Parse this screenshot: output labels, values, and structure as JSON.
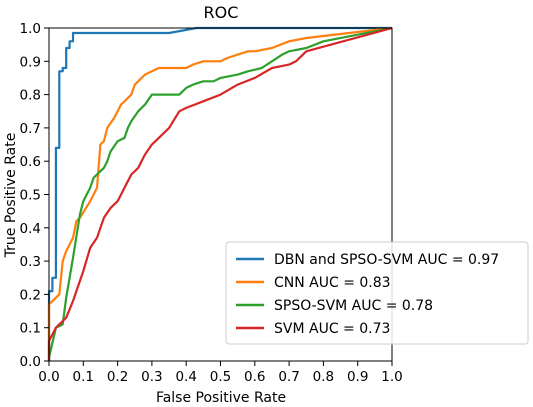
{
  "chart_data": {
    "type": "line",
    "title": "ROC",
    "xlabel": "False Positive Rate",
    "ylabel": "True Positive Rate",
    "xlim": [
      0,
      1
    ],
    "ylim": [
      0,
      1
    ],
    "xticks": [
      "0.0",
      "0.1",
      "0.2",
      "0.3",
      "0.4",
      "0.5",
      "0.6",
      "0.7",
      "0.8",
      "0.9",
      "1.0"
    ],
    "yticks": [
      "0.0",
      "0.1",
      "0.2",
      "0.3",
      "0.4",
      "0.5",
      "0.6",
      "0.7",
      "0.8",
      "0.9",
      "1.0"
    ],
    "grid": false,
    "legend_position": "lower-right",
    "series": [
      {
        "name": "DBN and SPSO-SVM AUC = 0.97",
        "color": "#1f77b4",
        "x": [
          0.0,
          0.0,
          0.01,
          0.01,
          0.02,
          0.02,
          0.03,
          0.03,
          0.04,
          0.04,
          0.05,
          0.05,
          0.06,
          0.06,
          0.07,
          0.07,
          0.35,
          0.43,
          1.0
        ],
        "y": [
          0.0,
          0.21,
          0.21,
          0.25,
          0.25,
          0.64,
          0.64,
          0.87,
          0.87,
          0.88,
          0.88,
          0.94,
          0.94,
          0.96,
          0.96,
          0.985,
          0.985,
          1.0,
          1.0
        ]
      },
      {
        "name": "CNN AUC = 0.83",
        "color": "#ff7f0e",
        "x": [
          0.0,
          0.0,
          0.02,
          0.03,
          0.04,
          0.05,
          0.07,
          0.08,
          0.09,
          0.12,
          0.14,
          0.15,
          0.16,
          0.17,
          0.19,
          0.2,
          0.21,
          0.22,
          0.24,
          0.25,
          0.26,
          0.28,
          0.3,
          0.32,
          0.4,
          0.42,
          0.45,
          0.5,
          0.52,
          0.55,
          0.58,
          0.6,
          0.65,
          0.7,
          0.75,
          1.0
        ],
        "y": [
          0.0,
          0.17,
          0.19,
          0.2,
          0.3,
          0.33,
          0.37,
          0.42,
          0.43,
          0.48,
          0.52,
          0.65,
          0.66,
          0.7,
          0.73,
          0.75,
          0.77,
          0.78,
          0.8,
          0.83,
          0.84,
          0.86,
          0.87,
          0.88,
          0.88,
          0.89,
          0.9,
          0.9,
          0.91,
          0.92,
          0.93,
          0.93,
          0.94,
          0.96,
          0.97,
          1.0
        ]
      },
      {
        "name": "SPSO-SVM AUC = 0.78",
        "color": "#2ca02c",
        "x": [
          0.0,
          0.0,
          0.02,
          0.04,
          0.05,
          0.07,
          0.09,
          0.1,
          0.12,
          0.13,
          0.14,
          0.15,
          0.16,
          0.17,
          0.18,
          0.2,
          0.22,
          0.23,
          0.24,
          0.26,
          0.27,
          0.28,
          0.3,
          0.38,
          0.4,
          0.42,
          0.45,
          0.48,
          0.5,
          0.55,
          0.58,
          0.62,
          0.65,
          0.68,
          0.7,
          0.75,
          0.8,
          1.0
        ],
        "y": [
          0.0,
          0.01,
          0.1,
          0.11,
          0.19,
          0.31,
          0.44,
          0.48,
          0.52,
          0.55,
          0.56,
          0.57,
          0.58,
          0.6,
          0.63,
          0.66,
          0.67,
          0.7,
          0.72,
          0.75,
          0.76,
          0.77,
          0.8,
          0.8,
          0.82,
          0.83,
          0.84,
          0.84,
          0.85,
          0.86,
          0.87,
          0.88,
          0.9,
          0.92,
          0.93,
          0.94,
          0.96,
          1.0
        ]
      },
      {
        "name": "SVM AUC = 0.73",
        "color": "#d62728",
        "x": [
          0.0,
          0.0,
          0.02,
          0.05,
          0.07,
          0.08,
          0.1,
          0.12,
          0.14,
          0.16,
          0.18,
          0.2,
          0.22,
          0.24,
          0.26,
          0.28,
          0.3,
          0.32,
          0.35,
          0.38,
          0.4,
          0.45,
          0.5,
          0.55,
          0.6,
          0.65,
          0.7,
          0.72,
          0.75,
          1.0
        ],
        "y": [
          0.0,
          0.06,
          0.1,
          0.13,
          0.18,
          0.21,
          0.27,
          0.34,
          0.37,
          0.43,
          0.46,
          0.48,
          0.52,
          0.56,
          0.58,
          0.62,
          0.65,
          0.67,
          0.7,
          0.75,
          0.76,
          0.78,
          0.8,
          0.83,
          0.85,
          0.88,
          0.89,
          0.9,
          0.93,
          1.0
        ]
      }
    ]
  }
}
